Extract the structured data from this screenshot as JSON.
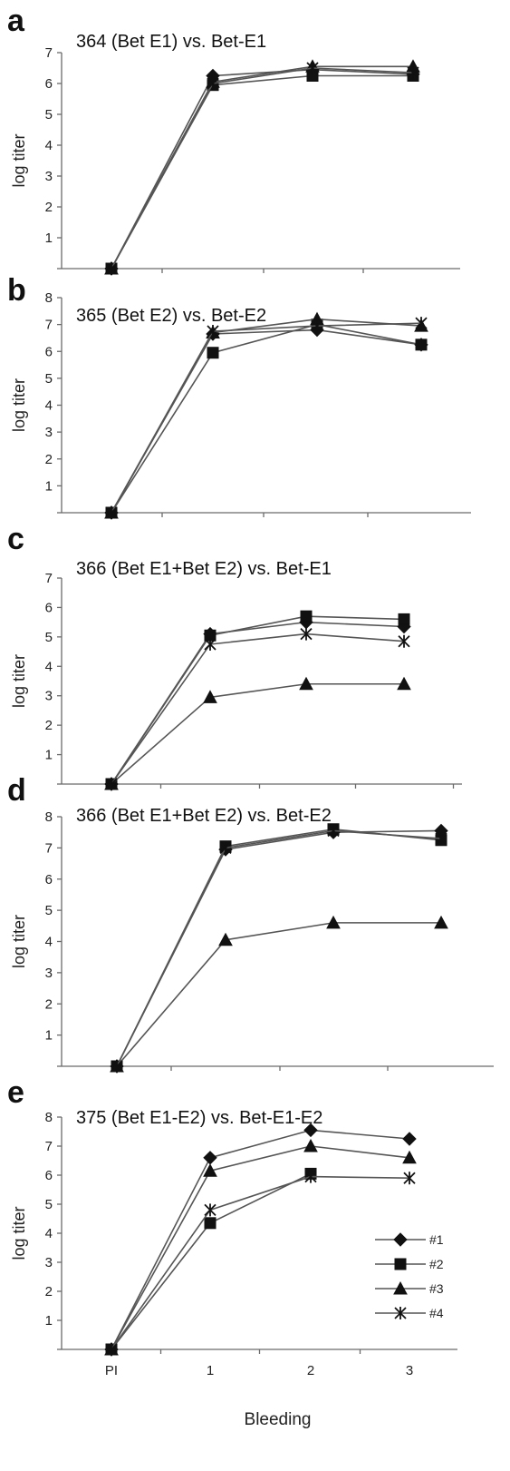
{
  "chart_data": [
    {
      "type": "line",
      "panel": "a",
      "title": "364 (Bet E1) vs. Bet-E1",
      "ylabel": "log titer",
      "xlabel": "",
      "categories": [
        "PI",
        "1",
        "2",
        "3"
      ],
      "ylim": [
        0,
        7
      ],
      "yticks": [
        1,
        2,
        3,
        4,
        5,
        6,
        7
      ],
      "show_x_tick_labels": false,
      "series": [
        {
          "name": "#1",
          "marker": "diamond",
          "values": [
            0,
            6.25,
            6.45,
            6.3
          ]
        },
        {
          "name": "#2",
          "marker": "square",
          "values": [
            0,
            5.95,
            6.25,
            6.25
          ]
        },
        {
          "name": "#3",
          "marker": "triangle",
          "values": [
            0,
            6.05,
            6.55,
            6.55
          ]
        },
        {
          "name": "#4",
          "marker": "star",
          "values": [
            0,
            6.0,
            6.5,
            6.35
          ]
        }
      ]
    },
    {
      "type": "line",
      "panel": "b",
      "title": "365 (Bet E2) vs. Bet-E2",
      "ylabel": "log titer",
      "xlabel": "",
      "categories": [
        "PI",
        "1",
        "2",
        "3"
      ],
      "ylim": [
        0,
        8
      ],
      "yticks": [
        1,
        2,
        3,
        4,
        5,
        6,
        7,
        8
      ],
      "show_x_tick_labels": false,
      "series": [
        {
          "name": "#1",
          "marker": "diamond",
          "values": [
            0,
            6.65,
            6.8,
            6.25
          ]
        },
        {
          "name": "#2",
          "marker": "square",
          "values": [
            0,
            5.95,
            7.0,
            6.25
          ]
        },
        {
          "name": "#3",
          "marker": "triangle",
          "values": [
            0,
            6.7,
            7.2,
            6.95
          ]
        },
        {
          "name": "#4",
          "marker": "star",
          "values": [
            0,
            6.75,
            6.95,
            7.05
          ]
        }
      ]
    },
    {
      "type": "line",
      "panel": "c",
      "title": "366 (Bet E1+Bet E2) vs. Bet-E1",
      "ylabel": "log titer",
      "xlabel": "",
      "categories": [
        "PI",
        "1",
        "2",
        "3"
      ],
      "ylim": [
        0,
        7
      ],
      "yticks": [
        1,
        2,
        3,
        4,
        5,
        6,
        7
      ],
      "show_x_tick_labels": false,
      "series": [
        {
          "name": "#1",
          "marker": "diamond",
          "values": [
            0,
            5.1,
            5.5,
            5.35
          ]
        },
        {
          "name": "#2",
          "marker": "square",
          "values": [
            0,
            5.05,
            5.7,
            5.6
          ]
        },
        {
          "name": "#3",
          "marker": "triangle",
          "values": [
            0,
            2.95,
            3.4,
            3.4
          ]
        },
        {
          "name": "#4",
          "marker": "star",
          "values": [
            0,
            4.75,
            5.1,
            4.85
          ]
        }
      ]
    },
    {
      "type": "line",
      "panel": "d",
      "title": "366 (Bet E1+Bet E2) vs. Bet-E2",
      "ylabel": "log titer",
      "xlabel": "",
      "categories": [
        "PI",
        "1",
        "2",
        "3"
      ],
      "ylim": [
        0,
        8
      ],
      "yticks": [
        1,
        2,
        3,
        4,
        5,
        6,
        7,
        8
      ],
      "show_x_tick_labels": false,
      "series": [
        {
          "name": "#1",
          "marker": "diamond",
          "values": [
            0,
            6.95,
            7.5,
            7.55
          ]
        },
        {
          "name": "#2",
          "marker": "square",
          "values": [
            0,
            7.05,
            7.6,
            7.25
          ]
        },
        {
          "name": "#3",
          "marker": "triangle",
          "values": [
            0,
            4.05,
            4.6,
            4.6
          ]
        },
        {
          "name": "#4",
          "marker": "star",
          "values": [
            0,
            7.0,
            7.55,
            7.3
          ]
        }
      ]
    },
    {
      "type": "line",
      "panel": "e",
      "title": "375 (Bet E1-E2) vs. Bet-E1-E2",
      "ylabel": "log titer",
      "xlabel": "Bleeding",
      "categories": [
        "PI",
        "1",
        "2",
        "3"
      ],
      "ylim": [
        0,
        8
      ],
      "yticks": [
        1,
        2,
        3,
        4,
        5,
        6,
        7,
        8
      ],
      "show_x_tick_labels": true,
      "legend": "lower-right",
      "series": [
        {
          "name": "#1",
          "marker": "diamond",
          "values": [
            0,
            6.6,
            7.55,
            7.25
          ]
        },
        {
          "name": "#2",
          "marker": "square",
          "values": [
            0,
            4.35,
            6.05,
            null
          ]
        },
        {
          "name": "#3",
          "marker": "triangle",
          "values": [
            0,
            6.15,
            7.0,
            6.6
          ]
        },
        {
          "name": "#4",
          "marker": "star",
          "values": [
            0,
            4.8,
            5.95,
            5.9
          ]
        }
      ]
    }
  ]
}
